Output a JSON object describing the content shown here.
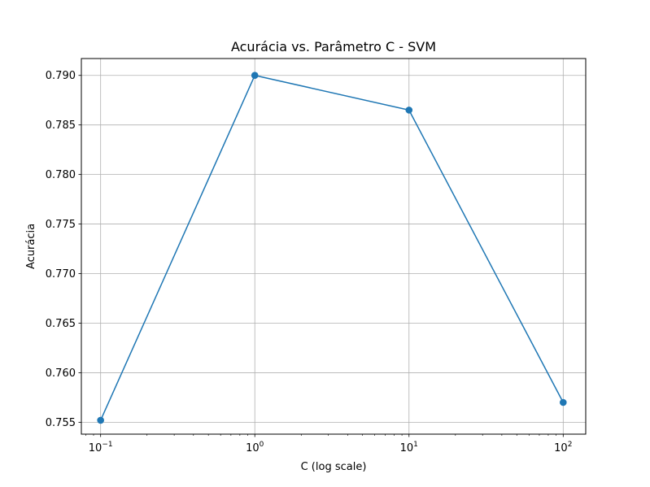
{
  "chart_data": {
    "type": "line",
    "title": "Acurácia vs. Parâmetro C - SVM",
    "xlabel": "C (log scale)",
    "ylabel": "Acurácia",
    "xscale": "log",
    "xlim": [
      0.075,
      140
    ],
    "ylim": [
      0.7538,
      0.7917
    ],
    "grid": true,
    "x": [
      0.1,
      1,
      10,
      100
    ],
    "series": [
      {
        "values": [
          0.7552,
          0.79,
          0.7865,
          0.757
        ],
        "color": "#1f77b4",
        "marker": "circle"
      }
    ],
    "xticks": [
      {
        "value": 0.1,
        "base": "10",
        "exp": "−1"
      },
      {
        "value": 1,
        "base": "10",
        "exp": "0"
      },
      {
        "value": 10,
        "base": "10",
        "exp": "1"
      },
      {
        "value": 100,
        "base": "10",
        "exp": "2"
      }
    ],
    "yticks": [
      "0.755",
      "0.760",
      "0.765",
      "0.770",
      "0.775",
      "0.780",
      "0.785",
      "0.790"
    ]
  }
}
